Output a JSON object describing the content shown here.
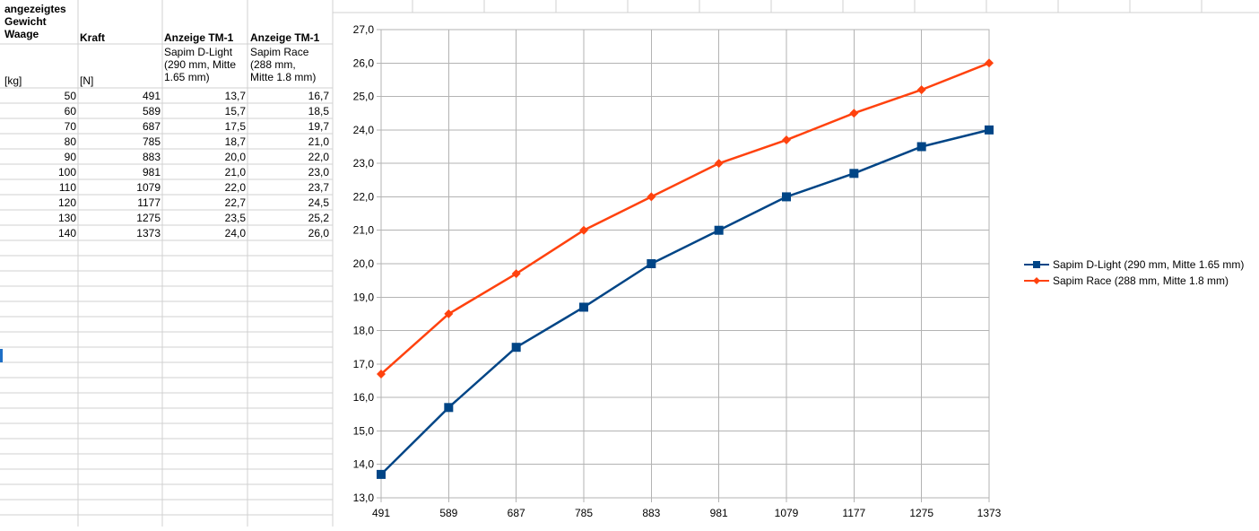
{
  "sheet": {
    "headers": {
      "a": "angezeigtes\nGewicht\nWaage",
      "b": "Kraft",
      "c": "Anzeige TM-1",
      "d": "Anzeige TM-1"
    },
    "subheaders": {
      "c": "Sapim D-Light\n(290 mm, Mitte\n1.65 mm)",
      "d": "Sapim Race\n(288 mm,\nMitte 1.8 mm)"
    },
    "units": {
      "a": "[kg]",
      "b": "[N]"
    },
    "rows": [
      [
        "50",
        "491",
        "13,7",
        "16,7"
      ],
      [
        "60",
        "589",
        "15,7",
        "18,5"
      ],
      [
        "70",
        "687",
        "17,5",
        "19,7"
      ],
      [
        "80",
        "785",
        "18,7",
        "21,0"
      ],
      [
        "90",
        "883",
        "20,0",
        "22,0"
      ],
      [
        "100",
        "981",
        "21,0",
        "23,0"
      ],
      [
        "110",
        "1079",
        "22,0",
        "23,7"
      ],
      [
        "120",
        "1177",
        "22,7",
        "24,5"
      ],
      [
        "130",
        "1275",
        "23,5",
        "25,2"
      ],
      [
        "140",
        "1373",
        "24,0",
        "26,0"
      ]
    ]
  },
  "colors": {
    "series1": "#004586",
    "series2": "#ff420e",
    "selection": "#1e6fc6"
  },
  "chart_data": {
    "type": "line",
    "categories": [
      "491",
      "589",
      "687",
      "785",
      "883",
      "981",
      "1079",
      "1177",
      "1275",
      "1373"
    ],
    "series": [
      {
        "name": "Sapim D-Light (290 mm, Mitte 1.65 mm)",
        "values": [
          13.7,
          15.7,
          17.5,
          18.7,
          20.0,
          21.0,
          22.0,
          22.7,
          23.5,
          24.0
        ],
        "marker": "square"
      },
      {
        "name": "Sapim Race (288 mm, Mitte 1.8 mm)",
        "values": [
          16.7,
          18.5,
          19.7,
          21.0,
          22.0,
          23.0,
          23.7,
          24.5,
          25.2,
          26.0
        ],
        "marker": "diamond"
      }
    ],
    "ylim": [
      13.0,
      27.0
    ],
    "ystep": 1.0,
    "ytick_labels": [
      "13,0",
      "14,0",
      "15,0",
      "16,0",
      "17,0",
      "18,0",
      "19,0",
      "20,0",
      "21,0",
      "22,0",
      "23,0",
      "24,0",
      "25,0",
      "26,0",
      "27,0"
    ],
    "grid": true,
    "legend": "right",
    "title": "",
    "xlabel": "",
    "ylabel": ""
  }
}
